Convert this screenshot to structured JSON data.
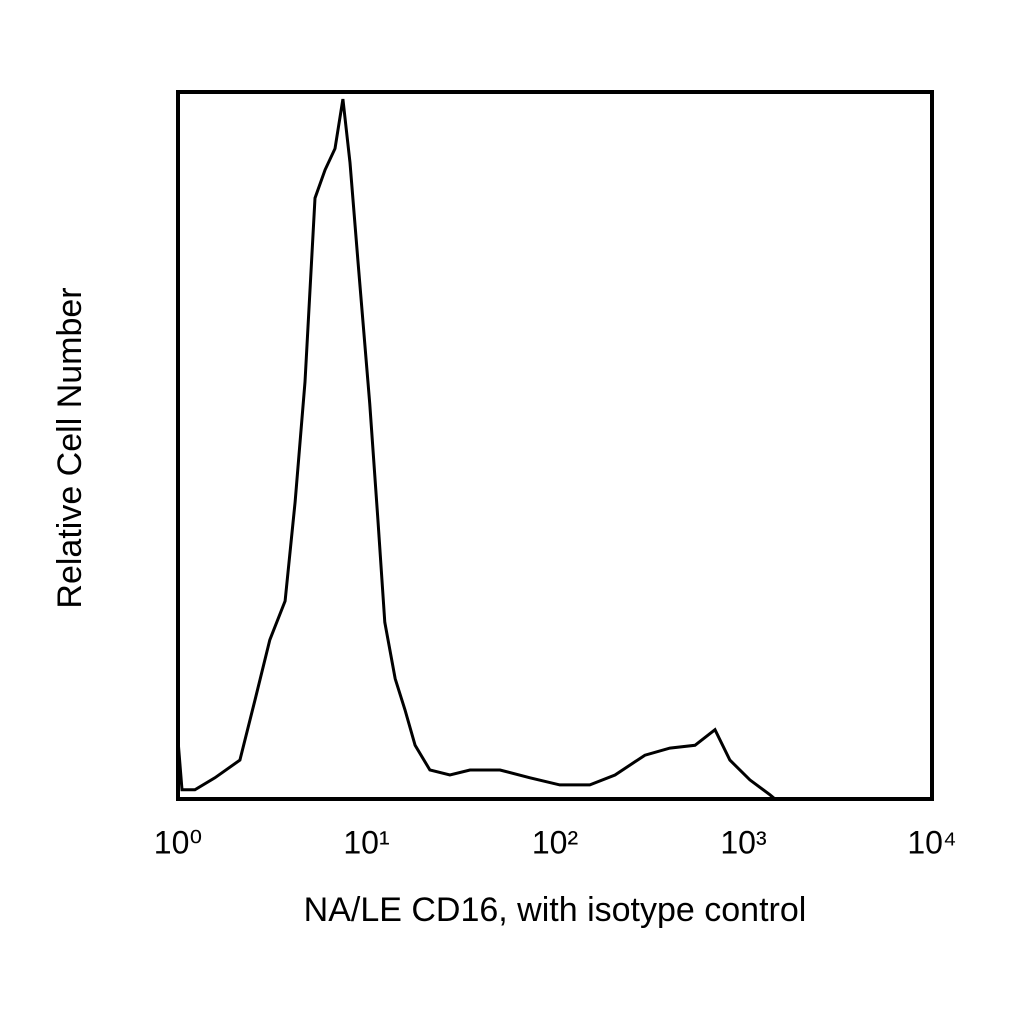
{
  "chart_data": {
    "type": "line",
    "xlabel": "NA/LE CD16, with isotype control",
    "ylabel": "Relative Cell Number",
    "xscale": "log",
    "xlim": [
      1,
      10000
    ],
    "xticks": [
      {
        "value": 1,
        "label": "10⁰"
      },
      {
        "value": 10,
        "label": "10¹"
      },
      {
        "value": 100,
        "label": "10²"
      },
      {
        "value": 1000,
        "label": "10³"
      },
      {
        "value": 10000,
        "label": "10⁴"
      }
    ],
    "ylim": [
      0,
      100
    ],
    "grid": false,
    "series": [
      {
        "color": "#000000",
        "x": [
          1,
          1.05,
          1.23,
          1.57,
          2.13,
          2.56,
          3.07,
          3.7,
          4.18,
          4.72,
          5.33,
          6.03,
          6.81,
          7.5,
          8.17,
          9.01,
          10.4,
          11.5,
          12.5,
          14.2,
          16,
          18.1,
          21.7,
          27.7,
          35.4,
          51.1,
          73.7,
          106,
          153,
          208,
          300,
          407,
          553,
          706,
          847,
          1081,
          1382,
          1469
        ],
        "values": [
          8.3,
          1.3,
          1.3,
          3,
          5.5,
          14,
          22.5,
          28,
          42,
          59,
          85,
          89,
          92,
          99,
          90,
          76,
          56,
          39.5,
          25,
          17,
          12.6,
          7.6,
          4.1,
          3.4,
          4.1,
          4.1,
          3,
          2,
          2,
          3.4,
          6.2,
          7.2,
          7.6,
          9.8,
          5.5,
          2.7,
          0.6,
          0
        ]
      }
    ]
  }
}
